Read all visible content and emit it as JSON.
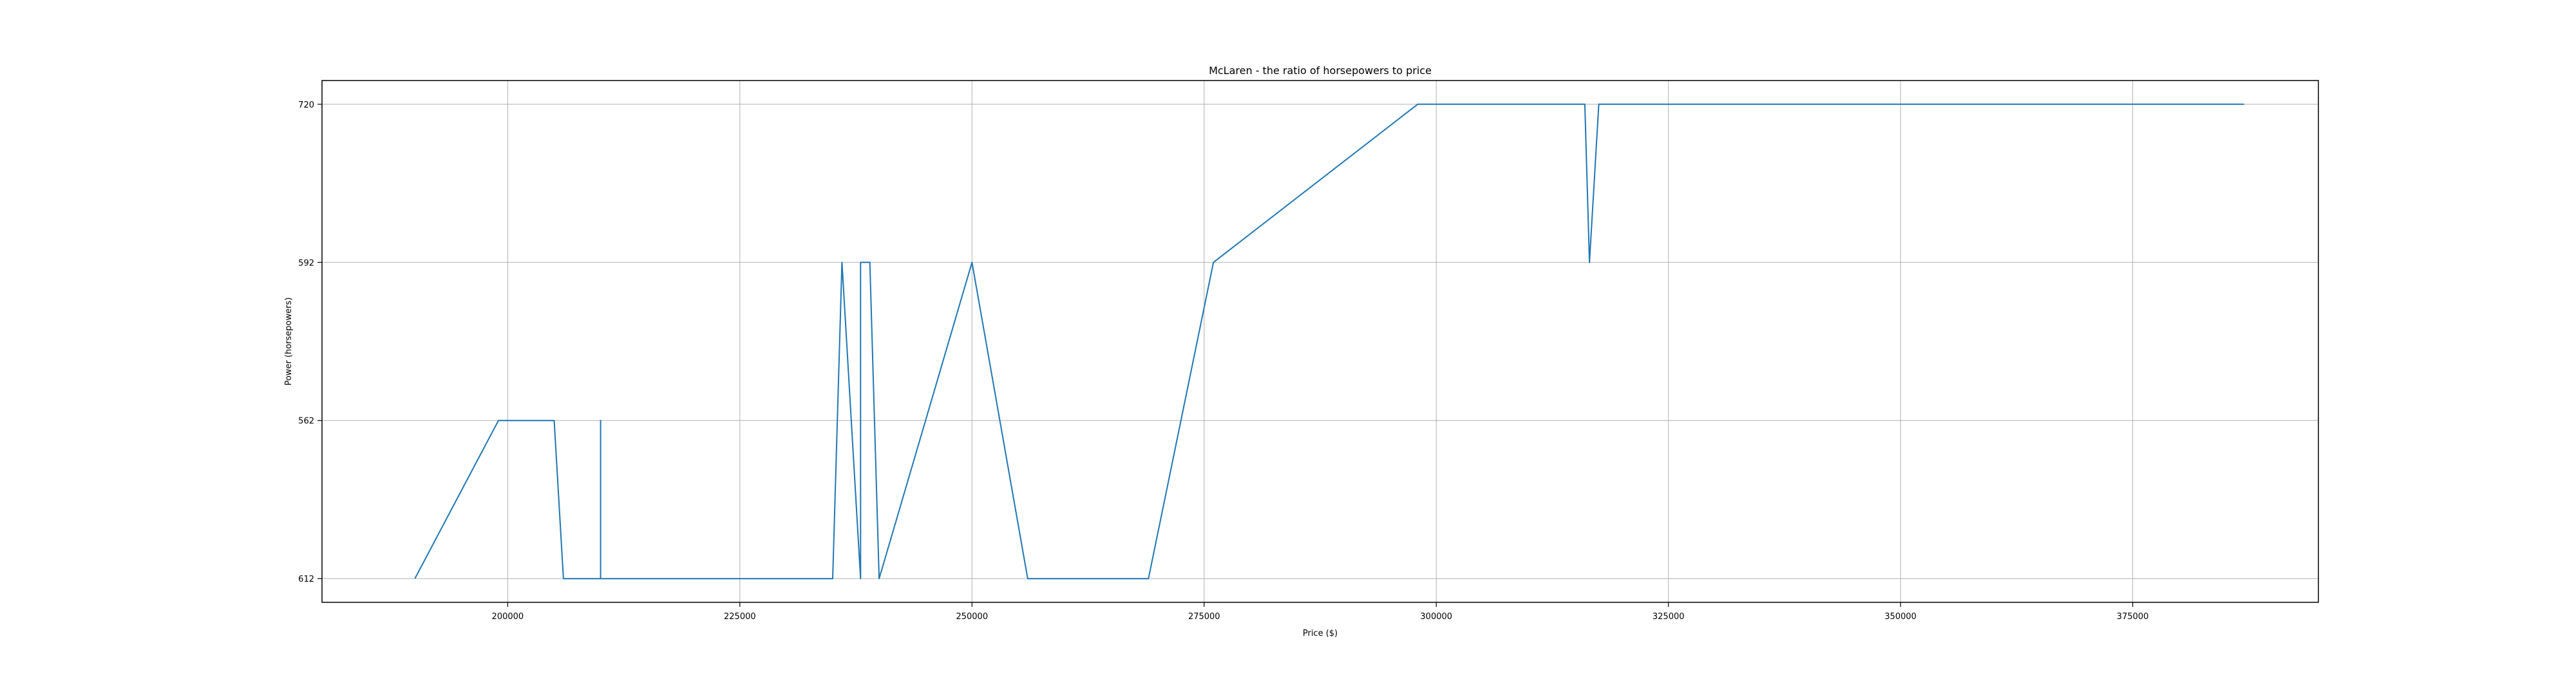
{
  "chart_data": {
    "type": "line",
    "title": "McLaren - the ratio of horsepowers to price",
    "xlabel": "Price ($)",
    "ylabel": "Power (horsepowers)",
    "xlim": [
      180000,
      395000
    ],
    "ylim": [
      -0.15,
      3.15
    ],
    "grid": true,
    "x_ticks": [
      200000,
      225000,
      250000,
      275000,
      300000,
      325000,
      350000,
      375000
    ],
    "y_categories": [
      "612",
      "562",
      "592",
      "720"
    ],
    "series": [
      {
        "color": "#1f77b4",
        "points": [
          {
            "x": 190000,
            "y": "612"
          },
          {
            "x": 199000,
            "y": "562"
          },
          {
            "x": 205000,
            "y": "562"
          },
          {
            "x": 206000,
            "y": "612"
          },
          {
            "x": 210000,
            "y": "612"
          },
          {
            "x": 210000,
            "y": "562"
          },
          {
            "x": 210000,
            "y": "612"
          },
          {
            "x": 235000,
            "y": "612"
          },
          {
            "x": 236000,
            "y": "592"
          },
          {
            "x": 238000,
            "y": "612"
          },
          {
            "x": 238000,
            "y": "592"
          },
          {
            "x": 239000,
            "y": "592"
          },
          {
            "x": 240000,
            "y": "612"
          },
          {
            "x": 250000,
            "y": "592"
          },
          {
            "x": 256000,
            "y": "612"
          },
          {
            "x": 269000,
            "y": "612"
          },
          {
            "x": 276000,
            "y": "592"
          },
          {
            "x": 298000,
            "y": "720"
          },
          {
            "x": 316000,
            "y": "720"
          },
          {
            "x": 316500,
            "y": "592"
          },
          {
            "x": 317500,
            "y": "720"
          },
          {
            "x": 387000,
            "y": "720"
          }
        ]
      }
    ]
  }
}
